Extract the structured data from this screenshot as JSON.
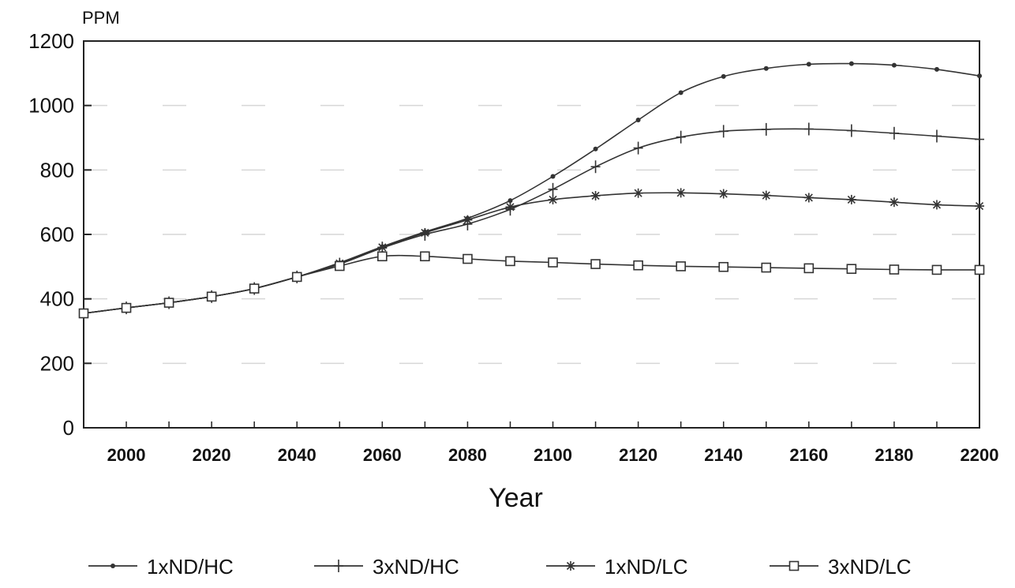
{
  "chart_data": {
    "type": "line",
    "title": "",
    "xlabel": "Year",
    "ylabel": "PPM",
    "xlim": [
      1990,
      2200
    ],
    "ylim": [
      0,
      1200
    ],
    "x_ticks": [
      2000,
      2020,
      2040,
      2060,
      2080,
      2100,
      2120,
      2140,
      2160,
      2180,
      2200
    ],
    "y_ticks": [
      0,
      200,
      400,
      600,
      800,
      1000,
      1200
    ],
    "grid": "dashed horizontal",
    "legend_position": "bottom",
    "line_color": "#333333",
    "series": [
      {
        "name": "1xND/HC",
        "marker": "dot",
        "x": [
          1990,
          2000,
          2010,
          2020,
          2030,
          2040,
          2050,
          2060,
          2070,
          2080,
          2090,
          2100,
          2110,
          2120,
          2130,
          2140,
          2150,
          2160,
          2170,
          2180,
          2190,
          2200
        ],
        "values": [
          355,
          372,
          388,
          407,
          432,
          468,
          512,
          562,
          608,
          650,
          705,
          780,
          865,
          955,
          1040,
          1090,
          1115,
          1128,
          1130,
          1125,
          1112,
          1092
        ]
      },
      {
        "name": "3xND/HC",
        "marker": "plus",
        "x": [
          1990,
          2000,
          2010,
          2020,
          2030,
          2040,
          2050,
          2060,
          2070,
          2080,
          2090,
          2100,
          2110,
          2120,
          2130,
          2140,
          2150,
          2160,
          2170,
          2180,
          2190,
          2200
        ],
        "values": [
          355,
          372,
          388,
          407,
          432,
          468,
          508,
          558,
          600,
          632,
          678,
          740,
          810,
          868,
          902,
          920,
          926,
          927,
          922,
          914,
          905,
          895
        ]
      },
      {
        "name": "1xND/LC",
        "marker": "asterisk",
        "x": [
          1990,
          2000,
          2010,
          2020,
          2030,
          2040,
          2050,
          2060,
          2070,
          2080,
          2090,
          2100,
          2110,
          2120,
          2130,
          2140,
          2150,
          2160,
          2170,
          2180,
          2190,
          2200
        ],
        "values": [
          355,
          372,
          388,
          407,
          432,
          468,
          510,
          560,
          605,
          645,
          685,
          708,
          720,
          728,
          729,
          726,
          721,
          714,
          708,
          700,
          692,
          688
        ]
      },
      {
        "name": "3xND/LC",
        "marker": "square",
        "x": [
          1990,
          2000,
          2010,
          2020,
          2030,
          2040,
          2050,
          2060,
          2070,
          2080,
          2090,
          2100,
          2110,
          2120,
          2130,
          2140,
          2150,
          2160,
          2170,
          2180,
          2190,
          2200
        ],
        "values": [
          355,
          372,
          388,
          407,
          432,
          468,
          502,
          532,
          532,
          524,
          517,
          513,
          508,
          504,
          501,
          499,
          497,
          495,
          493,
          491,
          490,
          490
        ]
      }
    ]
  }
}
